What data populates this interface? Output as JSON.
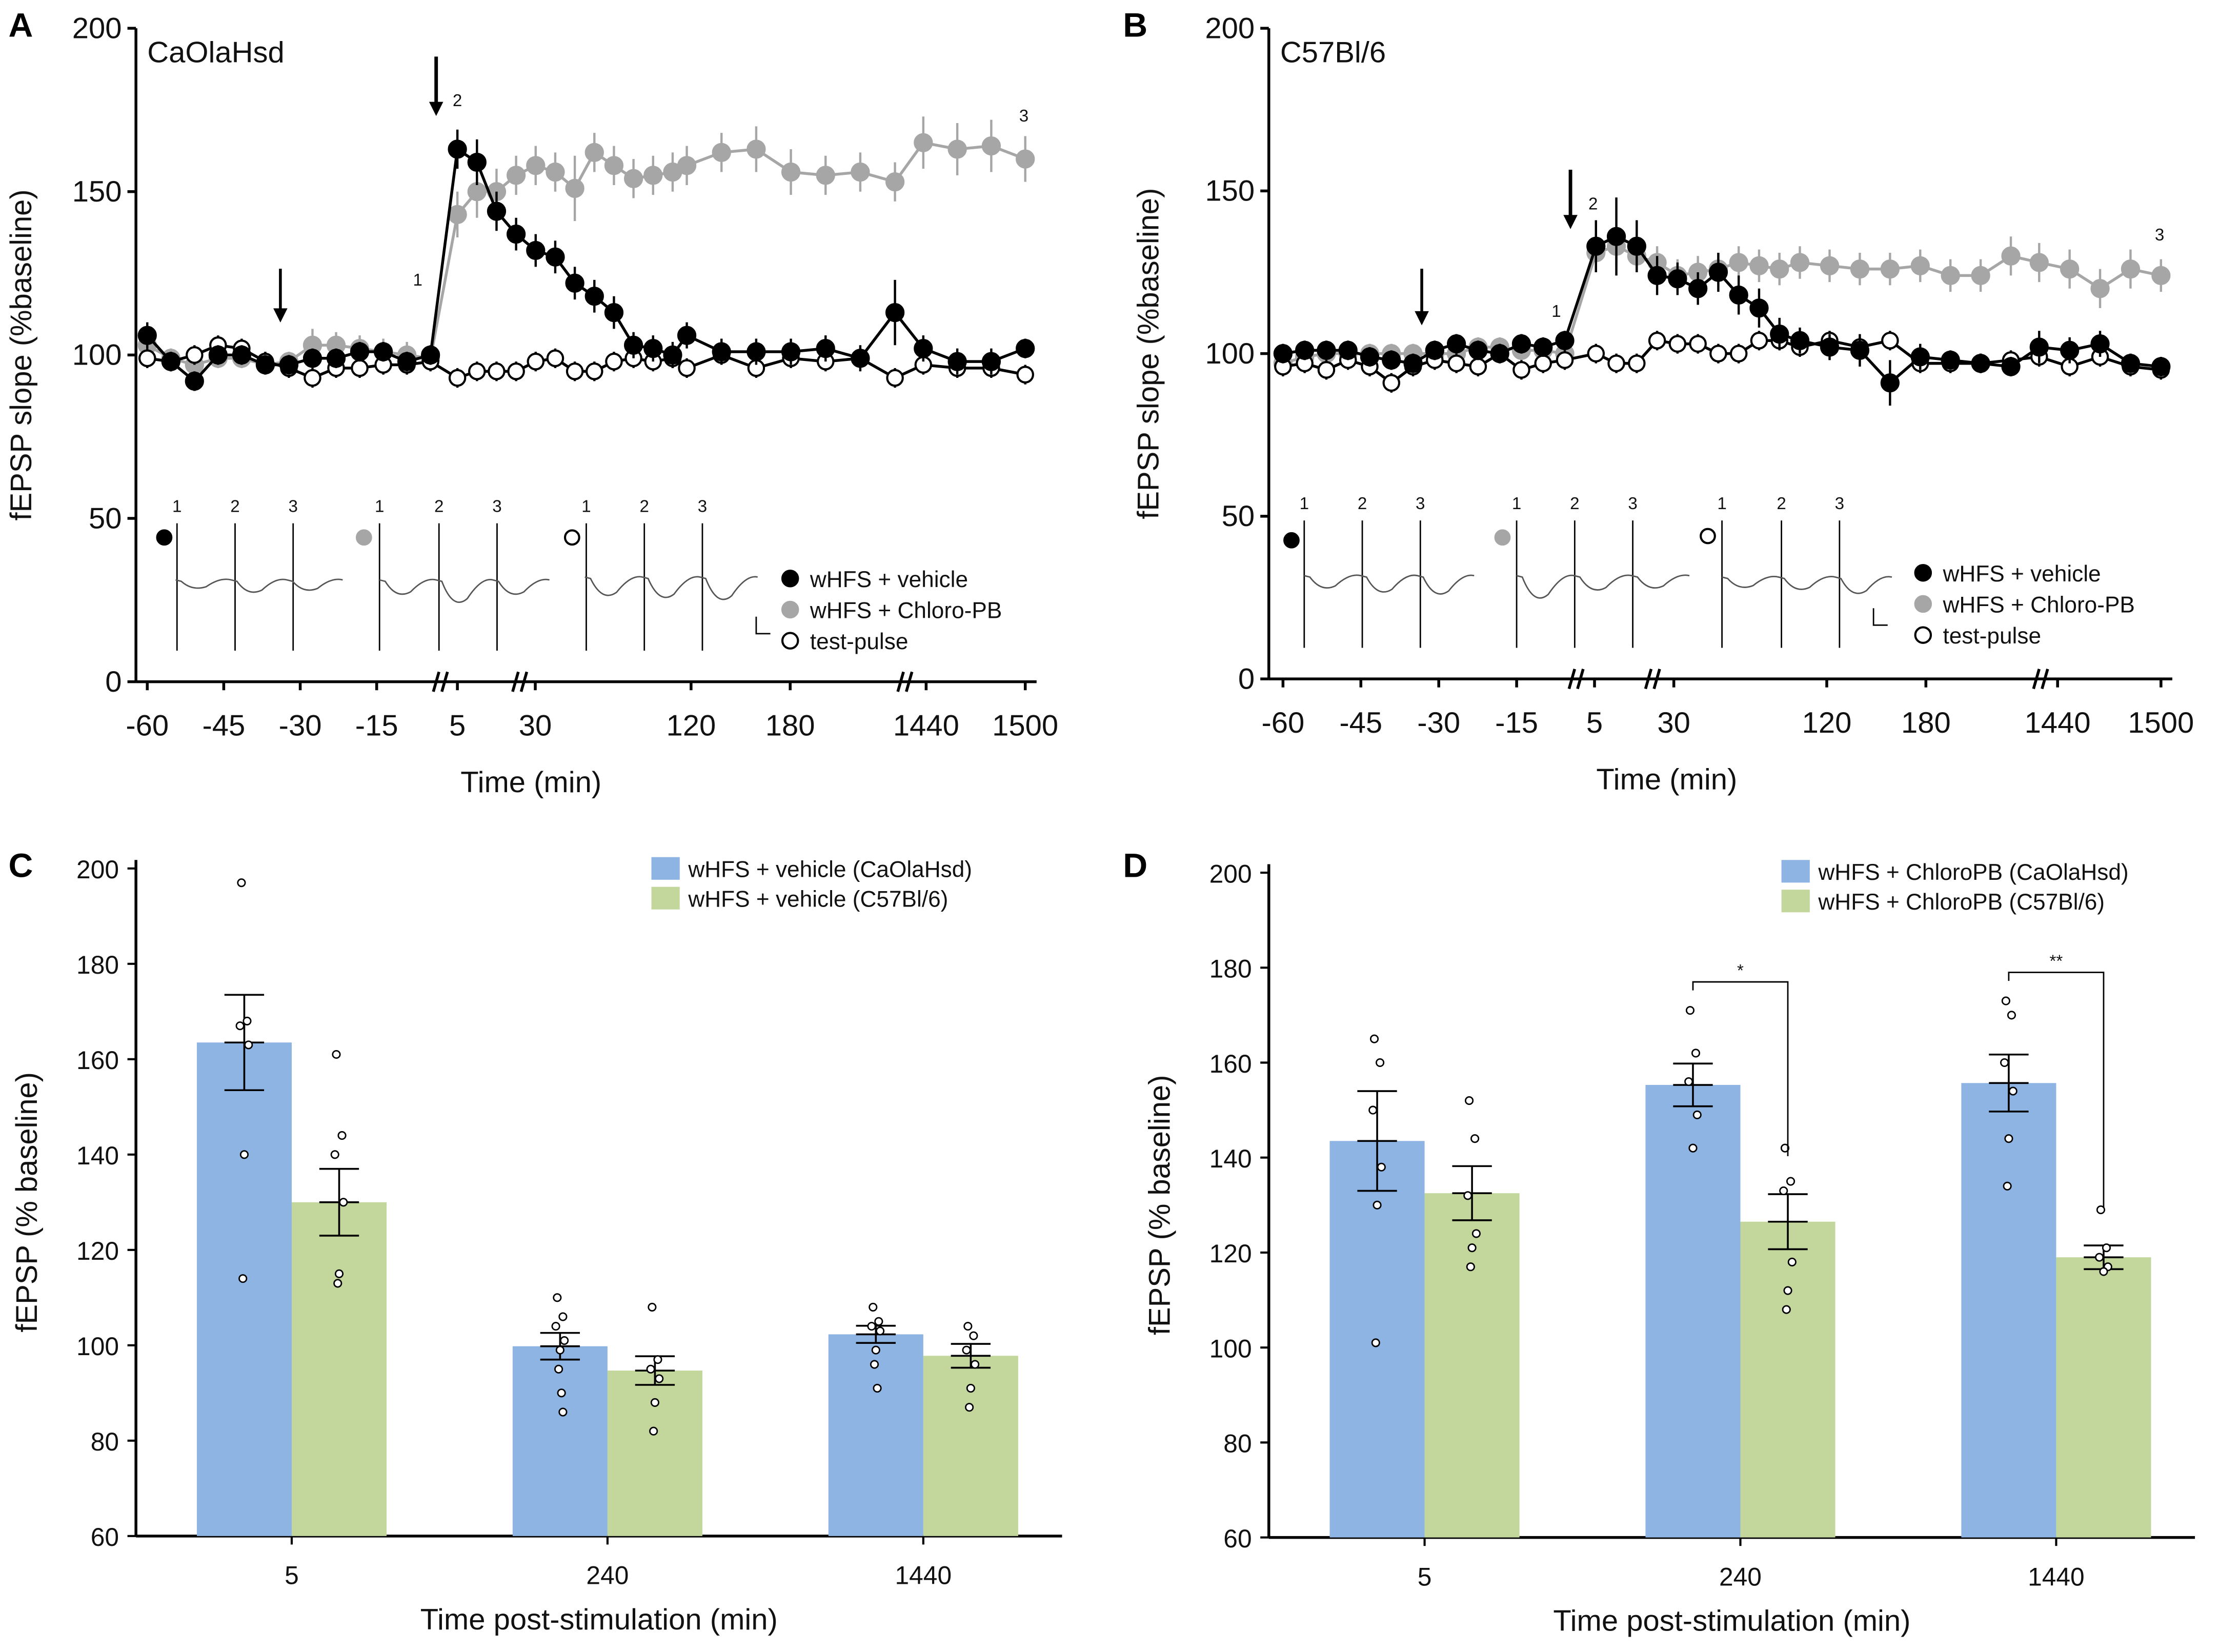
{
  "colors": {
    "vehicle": "#000000",
    "chloro": "#a6a6a6",
    "test": "#ffffff",
    "blue": "#8eb4e3",
    "green": "#c3d69b"
  },
  "chart_data": [
    {
      "panel": "A",
      "type": "line",
      "title": "CaOlaHsd",
      "xlabel": "Time (min)",
      "ylabel": "fEPSP slope (%baseline)",
      "ylim": [
        0,
        200
      ],
      "yticks": [
        "0",
        "50",
        "100",
        "150",
        "200"
      ],
      "xticks": [
        "-60",
        "-45",
        "-30",
        "-15",
        "5",
        "30",
        "120",
        "180",
        "1440",
        "1500"
      ],
      "inset_labels": [
        "1",
        "2",
        "3"
      ],
      "point_labels": [
        "1",
        "2",
        "3"
      ],
      "legend": [
        "wHFS + vehicle",
        "wHFS + Chloro-PB",
        "test-pulse"
      ],
      "series": [
        {
          "name": "wHFS + vehicle",
          "values": [
            106,
            98,
            92,
            100,
            100,
            97,
            97,
            99,
            99,
            101,
            101,
            98,
            100,
            163,
            159,
            144,
            137,
            132,
            130,
            122,
            118,
            113,
            103,
            102,
            100,
            106,
            101,
            101,
            101,
            102,
            99,
            113,
            102,
            98,
            98,
            102
          ],
          "errors": [
            4,
            3,
            3,
            3,
            3,
            3,
            3,
            3,
            3,
            3,
            3,
            3,
            3,
            6,
            7,
            6,
            5,
            5,
            5,
            5,
            5,
            5,
            4,
            4,
            4,
            4,
            4,
            4,
            4,
            4,
            4,
            10,
            4,
            4,
            4,
            3
          ]
        },
        {
          "name": "wHFS + Chloro-PB",
          "values": [
            103,
            99,
            97,
            99,
            99,
            97,
            98,
            103,
            103,
            102,
            101,
            100,
            99,
            143,
            150,
            150,
            155,
            158,
            156,
            151,
            162,
            158,
            154,
            155,
            156,
            158,
            162,
            163,
            156,
            155,
            156,
            153,
            165,
            163,
            164,
            160
          ],
          "errors": [
            4,
            3,
            3,
            3,
            3,
            3,
            3,
            5,
            4,
            4,
            4,
            4,
            3,
            7,
            8,
            7,
            6,
            6,
            6,
            10,
            6,
            6,
            6,
            6,
            6,
            6,
            6,
            7,
            7,
            6,
            6,
            6,
            8,
            8,
            8,
            7
          ]
        },
        {
          "name": "test-pulse",
          "values": [
            99,
            98,
            100,
            103,
            102,
            98,
            96,
            93,
            96,
            96,
            97,
            97,
            98,
            93,
            95,
            95,
            95,
            98,
            99,
            95,
            95,
            98,
            99,
            98,
            99,
            96,
            100,
            96,
            99,
            98,
            99,
            93,
            97,
            96,
            96,
            94
          ],
          "errors": [
            3,
            3,
            3,
            3,
            3,
            3,
            3,
            3,
            3,
            3,
            3,
            3,
            3,
            3,
            3,
            3,
            3,
            3,
            3,
            3,
            3,
            3,
            3,
            3,
            3,
            3,
            3,
            3,
            3,
            3,
            3,
            3,
            3,
            3,
            3,
            3
          ]
        }
      ]
    },
    {
      "panel": "B",
      "type": "line",
      "title": "C57Bl/6",
      "xlabel": "Time (min)",
      "ylabel": "fEPSP slope (%baseline)",
      "ylim": [
        0,
        200
      ],
      "yticks": [
        "0",
        "50",
        "100",
        "150",
        "200"
      ],
      "xticks": [
        "-60",
        "-45",
        "-30",
        "-15",
        "5",
        "30",
        "120",
        "180",
        "1440",
        "1500"
      ],
      "inset_labels": [
        "1",
        "2",
        "3"
      ],
      "point_labels": [
        "1",
        "2",
        "3"
      ],
      "legend": [
        "wHFS + vehicle",
        "wHFS + Chloro-PB",
        "test-pulse"
      ],
      "series": [
        {
          "name": "wHFS + vehicle",
          "values": [
            100,
            101,
            101,
            101,
            99,
            98,
            97,
            101,
            103,
            101,
            100,
            103,
            102,
            104,
            133,
            136,
            133,
            124,
            123,
            120,
            125,
            118,
            114,
            106,
            104,
            102,
            101,
            91,
            99,
            98,
            97,
            96,
            102,
            101,
            103,
            97,
            96
          ],
          "errors": [
            3,
            3,
            3,
            3,
            3,
            3,
            3,
            3,
            3,
            3,
            3,
            3,
            3,
            3,
            8,
            12,
            8,
            6,
            5,
            5,
            6,
            6,
            6,
            5,
            4,
            4,
            5,
            7,
            4,
            3,
            3,
            3,
            5,
            4,
            4,
            3,
            3
          ]
        },
        {
          "name": "wHFS + Chloro-PB",
          "values": [
            97,
            99,
            100,
            100,
            100,
            100,
            100,
            100,
            100,
            102,
            102,
            101,
            101,
            100,
            131,
            133,
            130,
            128,
            124,
            125,
            126,
            128,
            127,
            126,
            128,
            127,
            126,
            126,
            127,
            124,
            124,
            130,
            128,
            126,
            120,
            126,
            124
          ],
          "errors": [
            3,
            3,
            3,
            3,
            3,
            3,
            3,
            3,
            3,
            3,
            3,
            3,
            3,
            3,
            6,
            6,
            5,
            5,
            5,
            5,
            5,
            5,
            5,
            5,
            5,
            5,
            5,
            5,
            5,
            5,
            5,
            6,
            6,
            6,
            6,
            6,
            5
          ]
        },
        {
          "name": "test-pulse",
          "values": [
            96,
            97,
            95,
            98,
            96,
            91,
            96,
            98,
            97,
            96,
            100,
            95,
            97,
            98,
            100,
            97,
            97,
            104,
            103,
            103,
            100,
            100,
            104,
            104,
            102,
            104,
            102,
            104,
            97,
            97,
            97,
            98,
            99,
            96,
            99,
            96,
            95
          ],
          "errors": [
            3,
            3,
            3,
            3,
            3,
            3,
            3,
            3,
            3,
            3,
            3,
            3,
            3,
            3,
            3,
            3,
            3,
            3,
            3,
            3,
            3,
            3,
            3,
            3,
            3,
            3,
            3,
            3,
            3,
            3,
            3,
            3,
            3,
            3,
            3,
            3,
            3
          ]
        }
      ]
    },
    {
      "panel": "C",
      "type": "bar",
      "xlabel": "Time post-stimulation (min)",
      "ylabel": "fEPSP (% baseline)",
      "ylim": [
        60,
        200
      ],
      "yticks": [
        "60",
        "80",
        "100",
        "120",
        "140",
        "160",
        "180",
        "200"
      ],
      "categories": [
        "5",
        "240",
        "1440"
      ],
      "series": [
        {
          "name": "wHFS + vehicle (CaOlaHsd)",
          "values": [
            163.5,
            99.8,
            102.3
          ],
          "errors": [
            10,
            2.8,
            1.8
          ],
          "points": [
            [
              197,
              168,
              167,
              163,
              140,
              114
            ],
            [
              110,
              106,
              104,
              101,
              99,
              95,
              90,
              86
            ],
            [
              108,
              105,
              104,
              103,
              99,
              96,
              91
            ]
          ]
        },
        {
          "name": "wHFS + vehicle (C57Bl/6)",
          "values": [
            130,
            94.7,
            97.8
          ],
          "errors": [
            7,
            3,
            2.5
          ],
          "points": [
            [
              161,
              144,
              140,
              130,
              115,
              113
            ],
            [
              108,
              97,
              95,
              93,
              88,
              82
            ],
            [
              104,
              102,
              99,
              96,
              91,
              87
            ]
          ]
        }
      ],
      "significance": []
    },
    {
      "panel": "D",
      "type": "bar",
      "xlabel": "Time post-stimulation (min)",
      "ylabel": "fEPSP (% baseline)",
      "ylim": [
        60,
        200
      ],
      "yticks": [
        "60",
        "80",
        "100",
        "120",
        "140",
        "160",
        "180",
        "200"
      ],
      "categories": [
        "5",
        "240",
        "1440"
      ],
      "series": [
        {
          "name": "wHFS + ChloroPB (CaOlaHsd)",
          "values": [
            143.5,
            155.3,
            155.7
          ],
          "errors": [
            10.5,
            4.5,
            6
          ],
          "points": [
            [
              165,
              160,
              150,
              138,
              130,
              101
            ],
            [
              171,
              162,
              156,
              149,
              142
            ],
            [
              173,
              170,
              160,
              154,
              144,
              134
            ]
          ]
        },
        {
          "name": "wHFS + ChloroPB (C57Bl/6)",
          "values": [
            132.5,
            126.5,
            119
          ],
          "errors": [
            5.7,
            5.8,
            2.5
          ],
          "points": [
            [
              152,
              144,
              132,
              124,
              121,
              117
            ],
            [
              142,
              135,
              133,
              118,
              112,
              108
            ],
            [
              129,
              121,
              119,
              117,
              116
            ]
          ]
        }
      ],
      "significance": [
        {
          "category": "240",
          "label": "*"
        },
        {
          "category": "1440",
          "label": "**"
        }
      ]
    }
  ]
}
